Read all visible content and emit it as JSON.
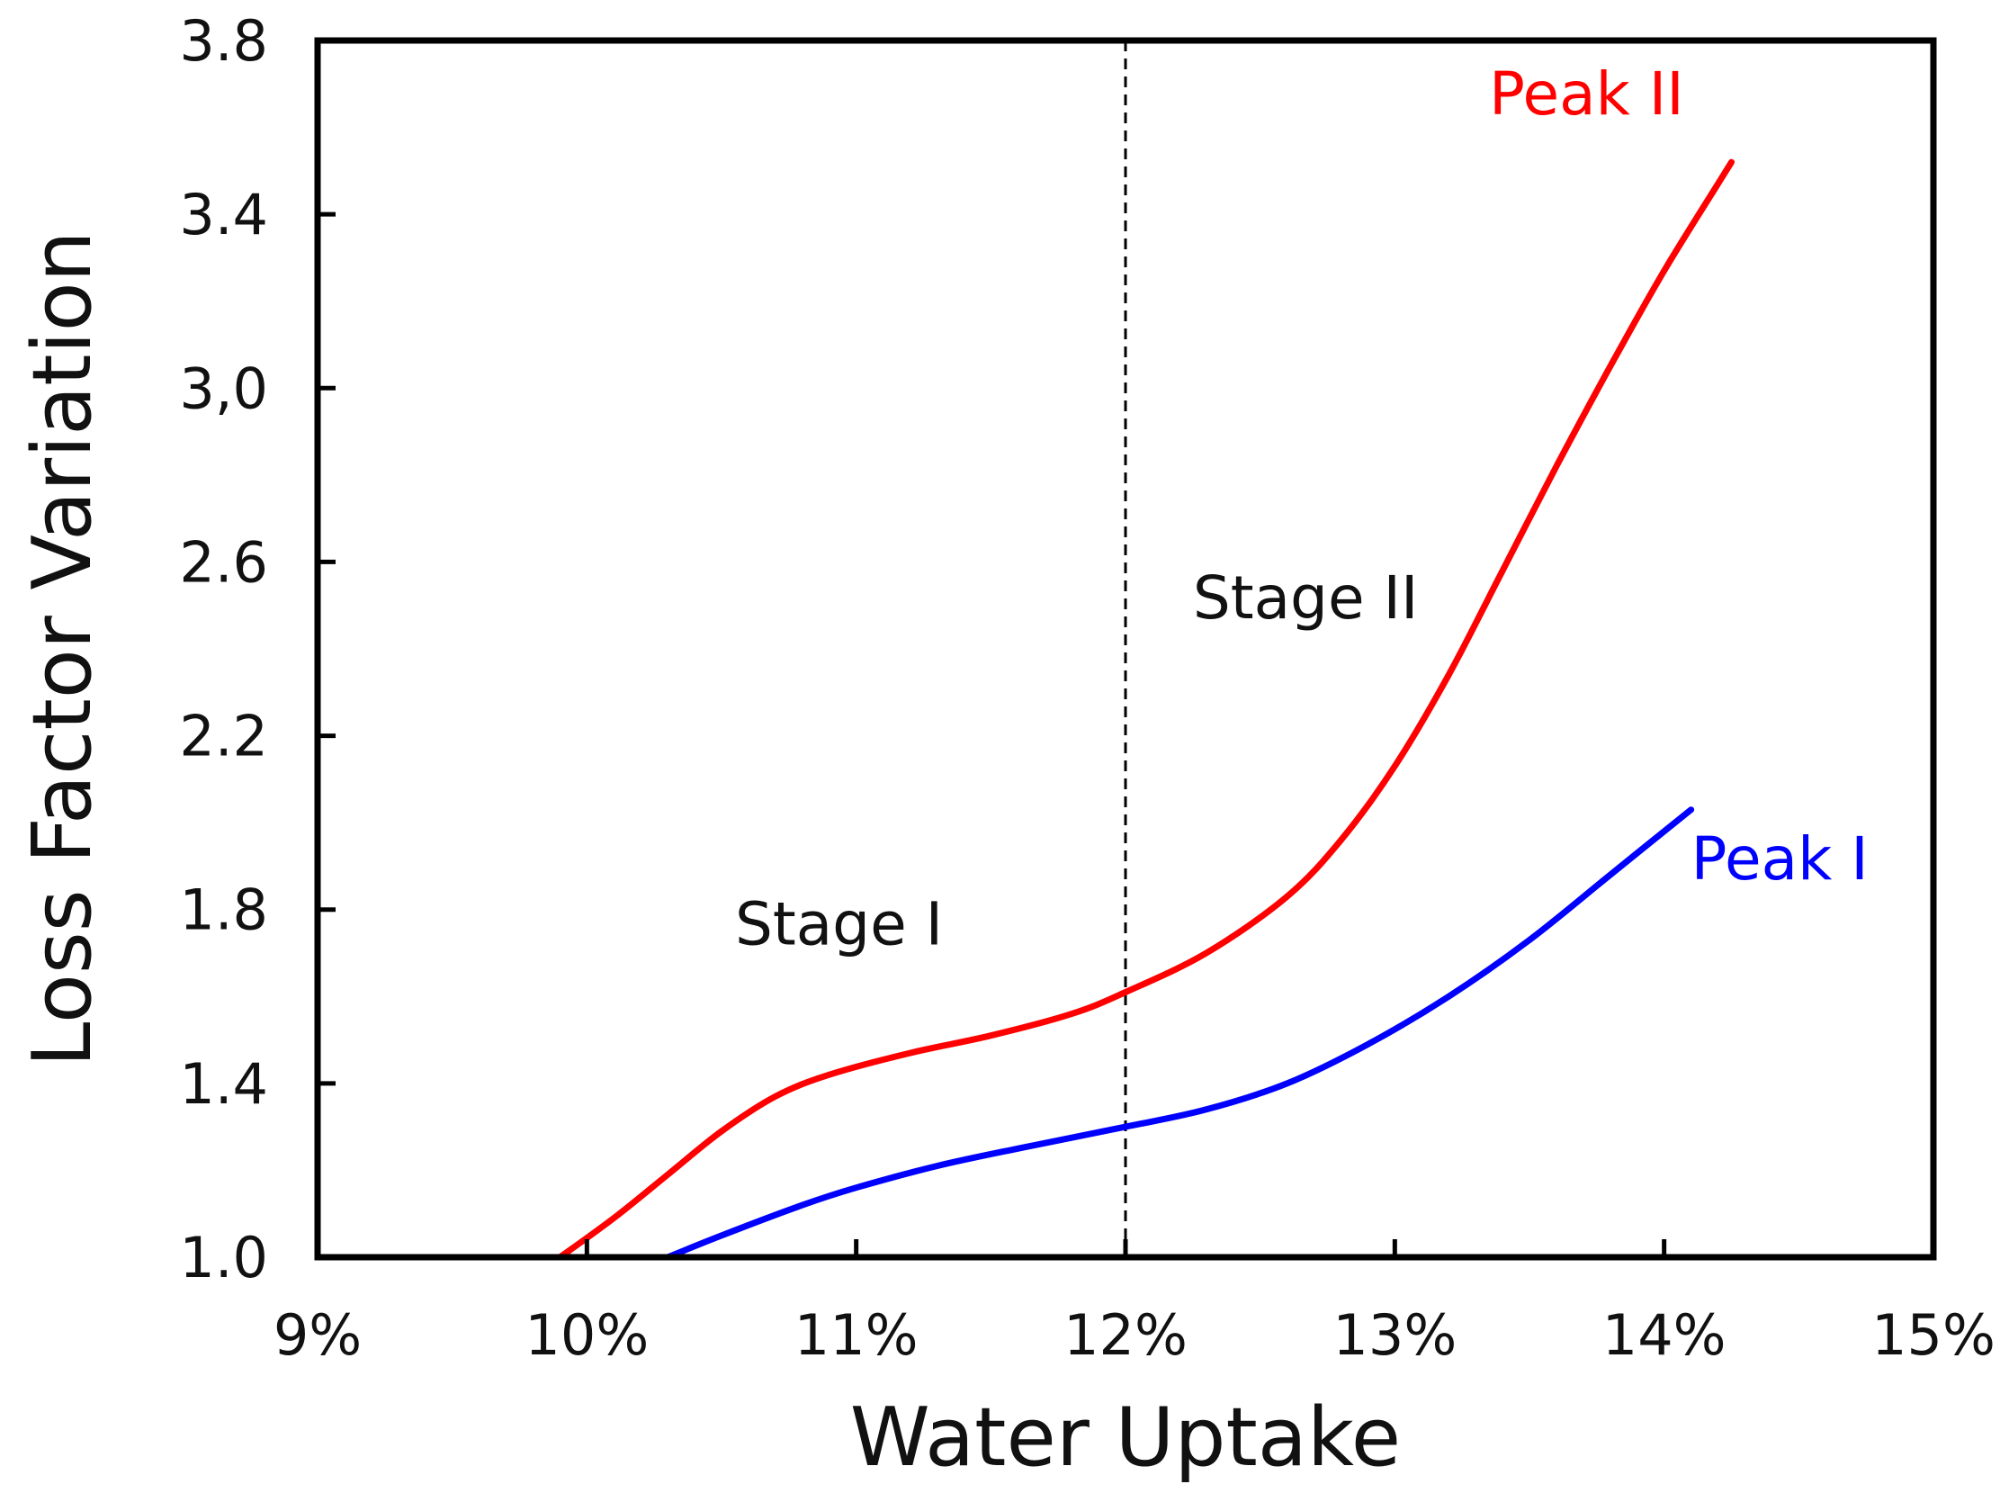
{
  "chart_data": {
    "type": "line",
    "title": "",
    "xlabel": "Water Uptake",
    "ylabel": "Loss Factor Variation",
    "xlim": [
      9,
      15
    ],
    "ylim": [
      1.0,
      3.8
    ],
    "x_ticks": [
      9,
      10,
      11,
      12,
      13,
      14,
      15
    ],
    "x_tick_labels": [
      "9%",
      "10%",
      "11%",
      "12%",
      "13%",
      "14%",
      "15%"
    ],
    "y_ticks": [
      1.0,
      1.4,
      1.8,
      2.2,
      2.6,
      3.0,
      3.4,
      3.8
    ],
    "y_tick_labels": [
      "1.0",
      "1.4",
      "1.8",
      "2.2",
      "2.6",
      "3,0",
      "3.4",
      "3.8"
    ],
    "grid": false,
    "vline": {
      "x": 12,
      "style": "dashed"
    },
    "series": [
      {
        "name": "Peak II",
        "color": "#ff0000",
        "x": [
          9.9,
          10.1,
          10.3,
          10.5,
          10.7,
          10.9,
          11.2,
          11.5,
          11.8,
          12.0,
          12.3,
          12.6,
          12.8,
          13.0,
          13.2,
          13.4,
          13.6,
          13.8,
          14.0,
          14.2,
          14.25
        ],
        "y": [
          1.0,
          1.09,
          1.19,
          1.29,
          1.37,
          1.42,
          1.47,
          1.51,
          1.56,
          1.61,
          1.7,
          1.83,
          1.96,
          2.13,
          2.34,
          2.58,
          2.82,
          3.05,
          3.27,
          3.47,
          3.52
        ]
      },
      {
        "name": "Peak I",
        "color": "#0000ff",
        "x": [
          10.3,
          10.5,
          10.8,
          11.0,
          11.3,
          11.6,
          12.0,
          12.3,
          12.6,
          12.9,
          13.2,
          13.5,
          13.8,
          14.1
        ],
        "y": [
          1.0,
          1.05,
          1.12,
          1.16,
          1.21,
          1.25,
          1.3,
          1.34,
          1.4,
          1.49,
          1.6,
          1.73,
          1.88,
          2.03
        ]
      }
    ],
    "annotations": [
      {
        "text": "Stage I",
        "x": 10.55,
        "y": 1.72,
        "color": "#111111"
      },
      {
        "text": "Stage II",
        "x": 12.25,
        "y": 2.47,
        "color": "#111111"
      },
      {
        "text": "Peak II",
        "x": 13.35,
        "y": 3.63,
        "color": "#ff0000"
      },
      {
        "text": "Peak I",
        "x": 14.1,
        "y": 1.87,
        "color": "#0000ff"
      }
    ]
  }
}
